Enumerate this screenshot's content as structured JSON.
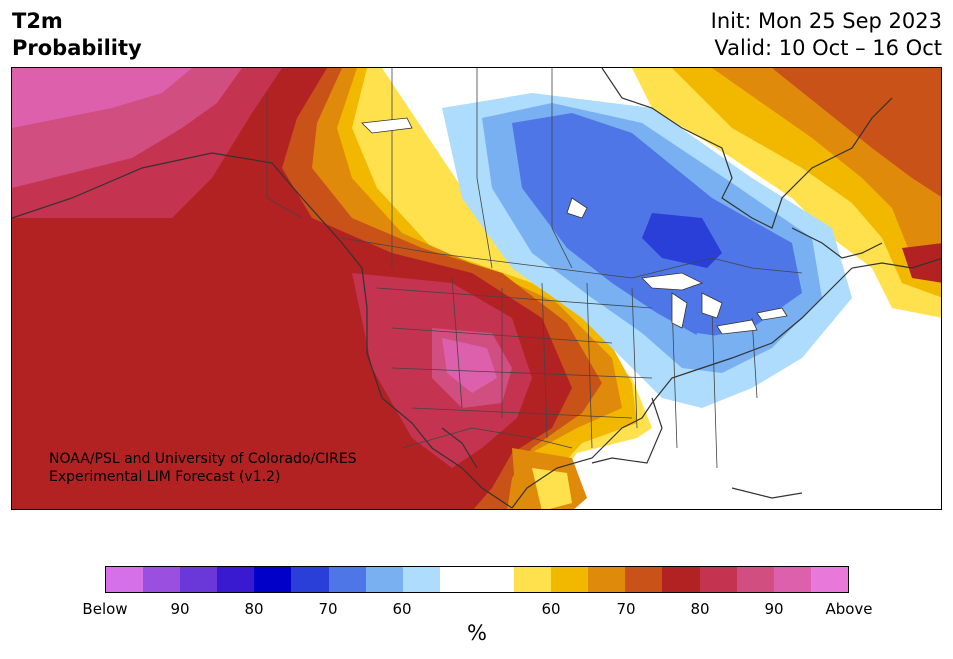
{
  "header": {
    "title_line1": "T2m",
    "title_line2": "Probability",
    "init": "Init: Mon 25 Sep 2023",
    "valid": "Valid: 10 Oct – 16 Oct"
  },
  "map": {
    "region": "North America",
    "credit_line1": "NOAA/PSL and University of Colorado/CIRES",
    "credit_line2": "Experimental LIM Forecast (v1.2)"
  },
  "colorbar": {
    "unit": "%",
    "colors": [
      "#d670e8",
      "#9b4fe0",
      "#6a38d8",
      "#3a1ad0",
      "#0000c8",
      "#2a3ed8",
      "#4f76e6",
      "#78b0f2",
      "#aedcfc",
      "#ffffff",
      "#ffffff",
      "#ffe14d",
      "#f2b800",
      "#e08a0c",
      "#c85218",
      "#b22222",
      "#c43350",
      "#d04e80",
      "#dc60ac",
      "#e878da"
    ],
    "ticks": [
      "Below",
      "90",
      "80",
      "70",
      "60",
      "60",
      "70",
      "80",
      "90",
      "Above"
    ]
  }
}
